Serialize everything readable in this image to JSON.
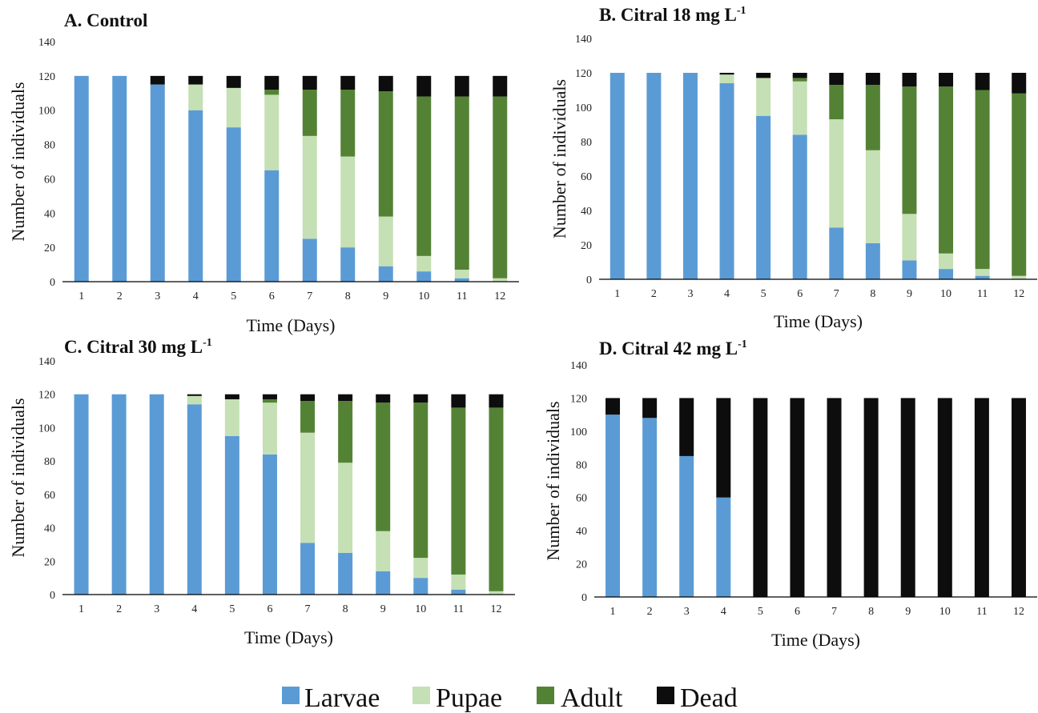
{
  "colors": {
    "Larvae": "#5b9bd5",
    "Pupae": "#c5e0b4",
    "Adult": "#548235",
    "Dead": "#0d0d0d"
  },
  "legend": [
    "Larvae",
    "Pupae",
    "Adult",
    "Dead"
  ],
  "chart_data": [
    {
      "type": "bar",
      "stacked": true,
      "title": "A. Control",
      "title_sup": "",
      "xlabel": "Time (Days)",
      "ylabel": "Number of individuals",
      "ylim": [
        0,
        140
      ],
      "yticks": [
        0,
        20,
        40,
        60,
        80,
        100,
        120,
        140
      ],
      "categories": [
        "1",
        "2",
        "3",
        "4",
        "5",
        "6",
        "7",
        "8",
        "9",
        "10",
        "11",
        "12"
      ],
      "series": [
        {
          "name": "Larvae",
          "values": [
            120,
            120,
            115,
            100,
            90,
            65,
            25,
            20,
            9,
            6,
            2,
            0
          ]
        },
        {
          "name": "Pupae",
          "values": [
            0,
            0,
            0,
            15,
            23,
            44,
            60,
            53,
            29,
            9,
            5,
            2
          ]
        },
        {
          "name": "Adult",
          "values": [
            0,
            0,
            0,
            0,
            0,
            3,
            27,
            39,
            73,
            93,
            101,
            106
          ]
        },
        {
          "name": "Dead",
          "values": [
            0,
            0,
            5,
            5,
            7,
            8,
            8,
            8,
            9,
            12,
            12,
            12
          ]
        }
      ]
    },
    {
      "type": "bar",
      "stacked": true,
      "title": "B. Citral 18 mg L",
      "title_sup": "-1",
      "xlabel": "Time (Days)",
      "ylabel": "Number of individuals",
      "ylim": [
        0,
        140
      ],
      "yticks": [
        0,
        20,
        40,
        60,
        80,
        100,
        120,
        140
      ],
      "categories": [
        "1",
        "2",
        "3",
        "4",
        "5",
        "6",
        "7",
        "8",
        "9",
        "10",
        "11",
        "12"
      ],
      "series": [
        {
          "name": "Larvae",
          "values": [
            120,
            120,
            120,
            114,
            95,
            84,
            30,
            21,
            11,
            6,
            2,
            0
          ]
        },
        {
          "name": "Pupae",
          "values": [
            0,
            0,
            0,
            5,
            22,
            31,
            63,
            54,
            27,
            9,
            4,
            2
          ]
        },
        {
          "name": "Adult",
          "values": [
            0,
            0,
            0,
            0,
            0,
            2,
            20,
            38,
            74,
            97,
            104,
            106
          ]
        },
        {
          "name": "Dead",
          "values": [
            0,
            0,
            0,
            1,
            3,
            3,
            7,
            7,
            8,
            8,
            10,
            12
          ]
        }
      ]
    },
    {
      "type": "bar",
      "stacked": true,
      "title": "C. Citral 30 mg L",
      "title_sup": "-1",
      "xlabel": "Time (Days)",
      "ylabel": "Number of individuals",
      "ylim": [
        0,
        140
      ],
      "yticks": [
        0,
        20,
        40,
        60,
        80,
        100,
        120,
        140
      ],
      "categories": [
        "1",
        "2",
        "3",
        "4",
        "5",
        "6",
        "7",
        "8",
        "9",
        "10",
        "11",
        "12"
      ],
      "series": [
        {
          "name": "Larvae",
          "values": [
            120,
            120,
            120,
            114,
            95,
            84,
            31,
            25,
            14,
            10,
            3,
            0
          ]
        },
        {
          "name": "Pupae",
          "values": [
            0,
            0,
            0,
            5,
            22,
            31,
            66,
            54,
            24,
            12,
            9,
            2
          ]
        },
        {
          "name": "Adult",
          "values": [
            0,
            0,
            0,
            0,
            0,
            2,
            19,
            37,
            77,
            93,
            100,
            110
          ]
        },
        {
          "name": "Dead",
          "values": [
            0,
            0,
            0,
            1,
            3,
            3,
            4,
            4,
            5,
            5,
            8,
            8
          ]
        }
      ]
    },
    {
      "type": "bar",
      "stacked": true,
      "title": "D. Citral 42 mg L",
      "title_sup": "-1",
      "xlabel": "Time (Days)",
      "ylabel": "Number of individuals",
      "ylim": [
        0,
        140
      ],
      "yticks": [
        0,
        20,
        40,
        60,
        80,
        100,
        120,
        140
      ],
      "categories": [
        "1",
        "2",
        "3",
        "4",
        "5",
        "6",
        "7",
        "8",
        "9",
        "10",
        "11",
        "12"
      ],
      "series": [
        {
          "name": "Larvae",
          "values": [
            110,
            108,
            85,
            60,
            0,
            0,
            0,
            0,
            0,
            0,
            0,
            0
          ]
        },
        {
          "name": "Pupae",
          "values": [
            0,
            0,
            0,
            0,
            0,
            0,
            0,
            0,
            0,
            0,
            0,
            0
          ]
        },
        {
          "name": "Adult",
          "values": [
            0,
            0,
            0,
            0,
            0,
            0,
            0,
            0,
            0,
            0,
            0,
            0
          ]
        },
        {
          "name": "Dead",
          "values": [
            10,
            12,
            35,
            60,
            120,
            120,
            120,
            120,
            120,
            120,
            120,
            120
          ]
        }
      ]
    }
  ]
}
